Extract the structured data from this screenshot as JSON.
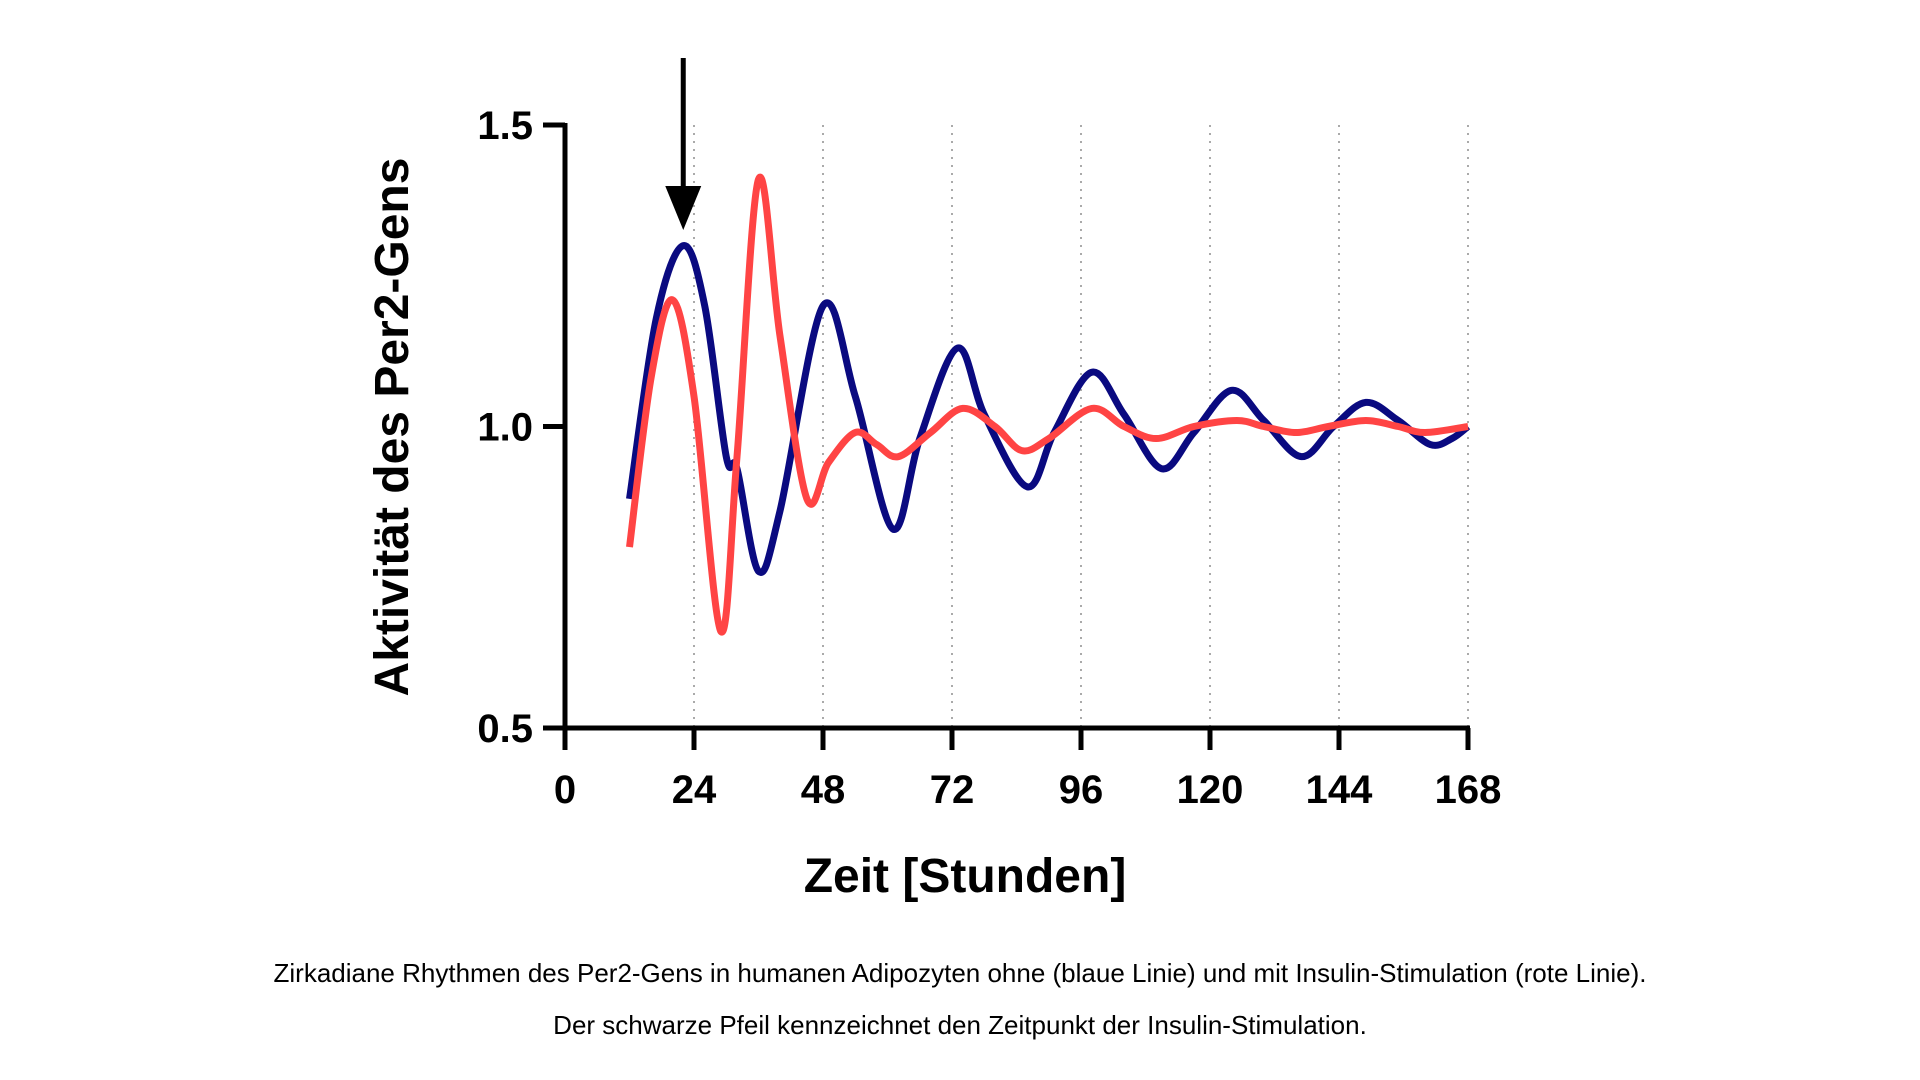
{
  "chart_data": {
    "type": "line",
    "xlabel": "Zeit [Stunden]",
    "ylabel": "Aktivität des Per2-Gens",
    "xlim": [
      0,
      168
    ],
    "ylim": [
      0.5,
      1.5
    ],
    "xticks": [
      "0",
      "24",
      "48",
      "72",
      "96",
      "120",
      "144",
      "168"
    ],
    "yticks": [
      "0.5",
      "1.0",
      "1.5"
    ],
    "grid": "vertical dotted at x ticks",
    "annotation": {
      "type": "arrow",
      "x": 22,
      "meaning": "Insulin-Stimulation"
    },
    "series": [
      {
        "name": "ohne Insulin (blaue Linie)",
        "color": "#0a0a80",
        "x": [
          12,
          17,
          22,
          26,
          30,
          32,
          36,
          40,
          48,
          54,
          61,
          66,
          73,
          78,
          86,
          91,
          98,
          104,
          111,
          117,
          124,
          130,
          137,
          143,
          149,
          155,
          161,
          165,
          168
        ],
        "y": [
          0.88,
          1.18,
          1.3,
          1.2,
          0.95,
          0.93,
          0.76,
          0.86,
          1.2,
          1.05,
          0.83,
          0.98,
          1.13,
          1.02,
          0.9,
          0.99,
          1.09,
          1.02,
          0.93,
          0.99,
          1.06,
          1.01,
          0.95,
          1.0,
          1.04,
          1.01,
          0.97,
          0.98,
          1.0
        ]
      },
      {
        "name": "mit Insulin-Stimulation (rote Linie)",
        "color": "#ff4444",
        "x": [
          12,
          16,
          20,
          24,
          29,
          32,
          36,
          40,
          45,
          49,
          54,
          58,
          62,
          68,
          74,
          80,
          85,
          90,
          98,
          104,
          110,
          117,
          125,
          130,
          136,
          142,
          149,
          155,
          160,
          168
        ],
        "y": [
          0.8,
          1.08,
          1.21,
          1.05,
          0.66,
          0.95,
          1.41,
          1.15,
          0.88,
          0.94,
          0.99,
          0.97,
          0.95,
          0.99,
          1.03,
          1.0,
          0.96,
          0.98,
          1.03,
          1.0,
          0.98,
          1.0,
          1.01,
          1.0,
          0.99,
          1.0,
          1.01,
          1.0,
          0.99,
          1.0
        ]
      }
    ]
  },
  "caption": {
    "line1": "Zirkadiane Rhythmen des Per2-Gens in humanen Adipozyten ohne (blaue Linie) und mit Insulin-Stimulation (rote Linie).",
    "line2": "Der schwarze Pfeil kennzeichnet den Zeitpunkt der Insulin-Stimulation."
  }
}
